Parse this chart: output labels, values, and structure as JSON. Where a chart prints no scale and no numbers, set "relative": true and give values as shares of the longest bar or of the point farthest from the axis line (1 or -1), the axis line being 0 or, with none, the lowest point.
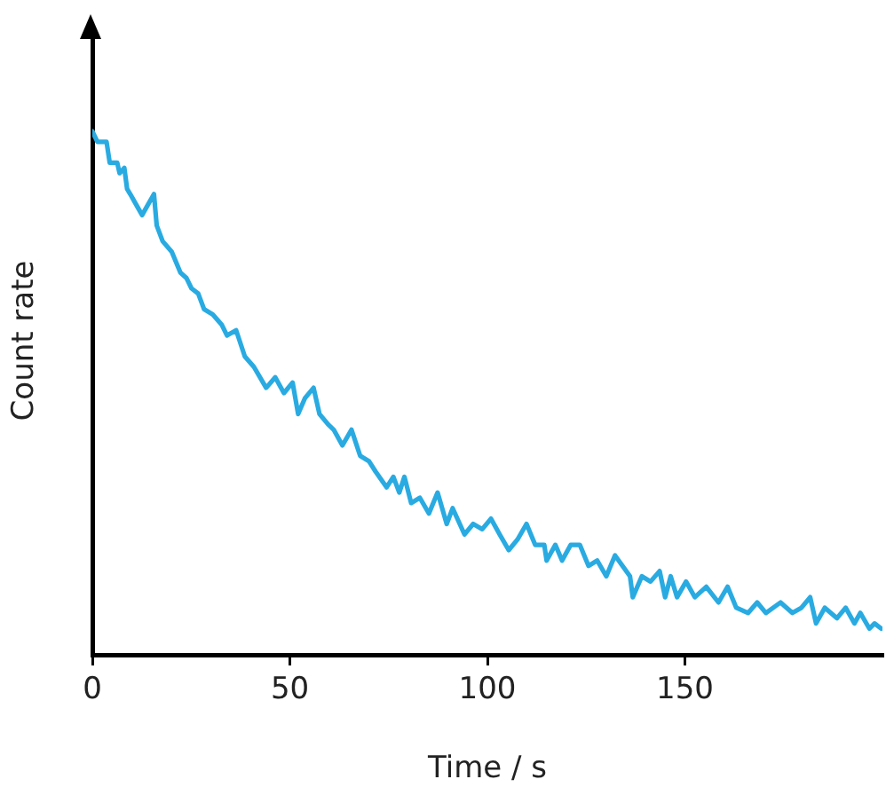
{
  "chart_data": {
    "type": "line",
    "xlabel": "Time / s",
    "ylabel": "Count rate",
    "relative": true,
    "xlim": [
      0,
      200
    ],
    "xticks": [
      0,
      50,
      100,
      150
    ],
    "grid": false,
    "legend": false,
    "marker": "none",
    "line_style": "solid",
    "series": [
      {
        "color": "#29abe2",
        "x": [
          0,
          1.3,
          3.6,
          4.4,
          6.3,
          6.9,
          8.1,
          8.8,
          9.6,
          11.1,
          12.6,
          15.6,
          16.3,
          17.8,
          20.1,
          22.3,
          23.8,
          25.1,
          26.8,
          28.3,
          30.5,
          32.8,
          34.1,
          36.4,
          38.6,
          40.9,
          44.0,
          46.3,
          48.5,
          50.7,
          52.1,
          53.8,
          56.0,
          57.5,
          59.7,
          61.1,
          63.3,
          65.6,
          67.8,
          70.0,
          71.7,
          74.5,
          76.2,
          77.7,
          79.0,
          80.7,
          82.9,
          85.2,
          87.4,
          89.7,
          91.2,
          94.2,
          96.4,
          98.7,
          100.9,
          103.1,
          105.4,
          107.6,
          109.9,
          112.1,
          114.4,
          115.0,
          117.2,
          118.9,
          121.1,
          123.4,
          125.6,
          127.8,
          130.1,
          132.3,
          136.1,
          136.8,
          139.1,
          141.3,
          143.6,
          145.0,
          146.4,
          148.0,
          150.3,
          152.5,
          155.4,
          158.5,
          160.8,
          163.0,
          166.0,
          168.3,
          170.5,
          174.2,
          177.2,
          179.5,
          181.7,
          183.2,
          185.4,
          188.5,
          190.7,
          192.9,
          194.4,
          196.7,
          198.0,
          199.7
        ],
        "values": [
          1,
          0.98,
          0.98,
          0.94,
          0.94,
          0.92,
          0.93,
          0.89,
          0.88,
          0.86,
          0.84,
          0.88,
          0.82,
          0.79,
          0.77,
          0.73,
          0.72,
          0.7,
          0.69,
          0.66,
          0.65,
          0.63,
          0.61,
          0.62,
          0.57,
          0.55,
          0.51,
          0.53,
          0.5,
          0.52,
          0.46,
          0.49,
          0.51,
          0.46,
          0.44,
          0.43,
          0.4,
          0.43,
          0.38,
          0.37,
          0.35,
          0.32,
          0.34,
          0.31,
          0.34,
          0.29,
          0.3,
          0.27,
          0.31,
          0.25,
          0.28,
          0.23,
          0.25,
          0.24,
          0.26,
          0.23,
          0.2,
          0.22,
          0.25,
          0.21,
          0.21,
          0.18,
          0.21,
          0.18,
          0.21,
          0.21,
          0.17,
          0.18,
          0.15,
          0.19,
          0.15,
          0.11,
          0.15,
          0.14,
          0.16,
          0.11,
          0.15,
          0.11,
          0.14,
          0.11,
          0.13,
          0.1,
          0.13,
          0.09,
          0.08,
          0.1,
          0.08,
          0.1,
          0.08,
          0.09,
          0.11,
          0.06,
          0.09,
          0.07,
          0.09,
          0.06,
          0.08,
          0.05,
          0.06,
          0.05
        ]
      }
    ]
  }
}
